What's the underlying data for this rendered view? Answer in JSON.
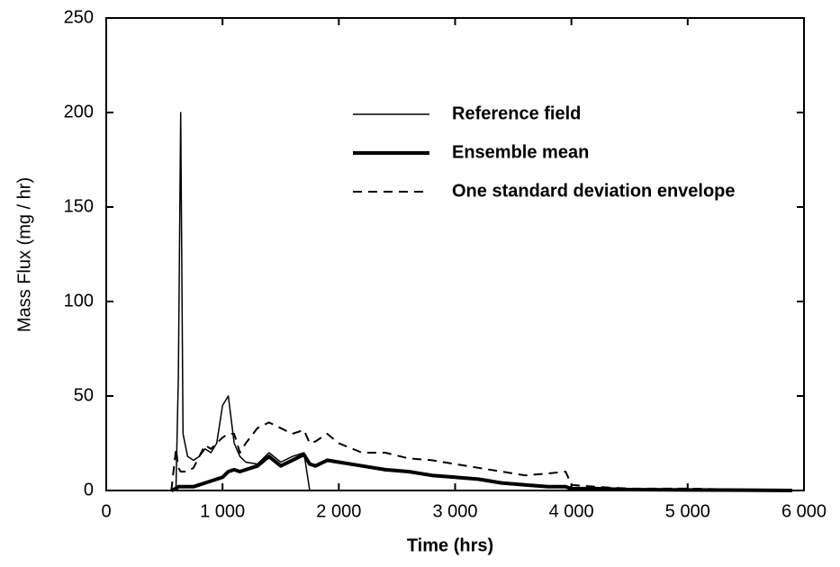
{
  "chart_data": {
    "type": "line",
    "xlabel": "Time (hrs)",
    "ylabel": "Mass Flux (mg / hr)",
    "x": [
      560,
      600,
      620,
      640,
      660,
      700,
      750,
      800,
      850,
      900,
      950,
      1000,
      1050,
      1100,
      1150,
      1200,
      1300,
      1400,
      1500,
      1600,
      1700,
      1750,
      1800,
      1900,
      2000,
      2200,
      2400,
      2600,
      2800,
      3000,
      3200,
      3400,
      3600,
      3800,
      3950,
      4000,
      4200,
      4500,
      5000,
      5500,
      5900
    ],
    "series": [
      {
        "name": "Reference field",
        "color": "#000000",
        "line_width": 1.5,
        "dash": "none",
        "values": [
          0,
          2,
          60,
          200,
          30,
          18,
          16,
          18,
          22,
          20,
          25,
          45,
          50,
          25,
          18,
          15,
          14,
          20,
          15,
          18,
          20,
          0,
          0,
          null,
          null,
          null,
          null,
          null,
          null,
          null,
          null,
          null,
          null,
          null,
          null,
          null,
          null,
          null,
          null,
          null,
          null
        ]
      },
      {
        "name": "Ensemble mean",
        "color": "#000000",
        "line_width": 4,
        "dash": "none",
        "values": [
          0,
          1,
          2,
          2,
          2,
          2,
          2,
          3,
          4,
          5,
          6,
          7,
          10,
          11,
          10,
          11,
          13,
          18,
          13,
          16,
          19,
          14,
          13,
          16,
          15,
          13,
          11,
          10,
          8,
          7,
          6,
          4,
          3,
          2,
          2,
          1,
          1,
          0.5,
          0.3,
          0.2,
          0
        ]
      },
      {
        "name": "One standard deviation envelope",
        "color": "#000000",
        "line_width": 2,
        "dash": "10 7",
        "values": [
          0,
          22,
          12,
          10,
          10,
          10,
          12,
          18,
          24,
          22,
          25,
          28,
          30,
          30,
          20,
          25,
          33,
          36,
          33,
          30,
          32,
          25,
          26,
          30,
          25,
          20,
          20,
          17,
          16,
          14,
          12,
          10,
          8,
          9,
          10,
          3,
          2,
          1,
          1,
          0.5,
          0
        ]
      }
    ],
    "xlim": [
      0,
      6000
    ],
    "xticks": [
      0,
      {
        "value": 1000,
        "label": "1 000"
      },
      {
        "value": 2000,
        "label": "2 000"
      },
      {
        "value": 3000,
        "label": "3 000"
      },
      {
        "value": 4000,
        "label": "4 000"
      },
      {
        "value": 5000,
        "label": "5 000"
      },
      {
        "value": 6000,
        "label": "6 000"
      }
    ],
    "ylim": [
      0,
      250
    ],
    "yticks": [
      0,
      50,
      100,
      150,
      200,
      250
    ],
    "legend": "upper right"
  }
}
